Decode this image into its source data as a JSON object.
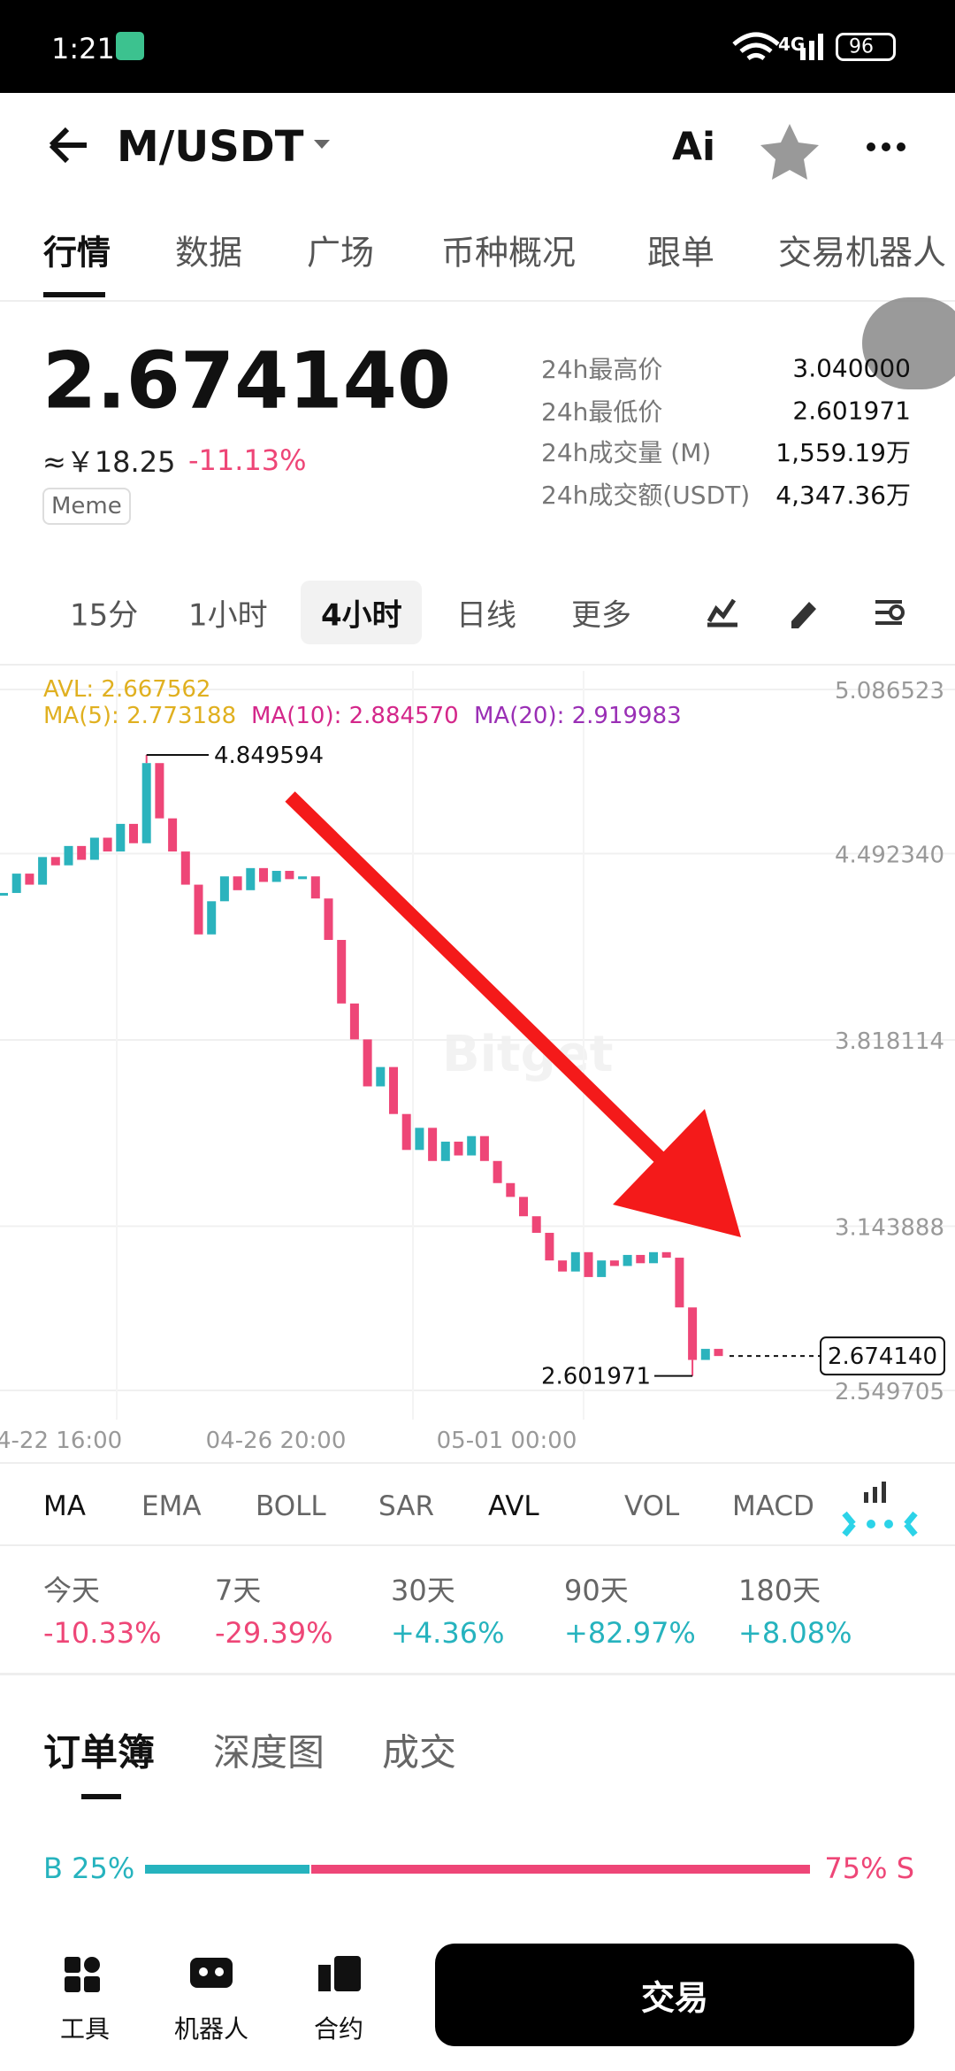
{
  "status_bar": {
    "time": "1:21",
    "network": "4G",
    "battery": "96"
  },
  "header": {
    "pair": "M/USDT",
    "ai": "Ai"
  },
  "tabs": [
    "行情",
    "数据",
    "广场",
    "币种概况",
    "跟单",
    "交易机器人"
  ],
  "price": {
    "last": "2.674140",
    "cny": "≈￥18.25",
    "change": "-11.13%",
    "tag": "Meme"
  },
  "stats": [
    {
      "label": "24h最高价",
      "value": "3.040000"
    },
    {
      "label": "24h最低价",
      "value": "2.601971"
    },
    {
      "label": "24h成交量 (M)",
      "value": "1,559.19万"
    },
    {
      "label": "24h成交额(USDT)",
      "value": "4,347.36万"
    }
  ],
  "intervals": [
    "15分",
    "1小时",
    "4小时",
    "日线",
    "更多"
  ],
  "chart": {
    "type": "candlestick",
    "indicators": {
      "avl": "AVL: 2.667562",
      "ma5": "MA(5): 2.773188",
      "ma10": "MA(10): 2.884570",
      "ma20": "MA(20): 2.919983"
    },
    "closes": [
      4.35,
      4.42,
      4.38,
      4.48,
      4.45,
      4.52,
      4.47,
      4.55,
      4.5,
      4.6,
      4.53,
      4.82,
      4.62,
      4.5,
      4.38,
      4.2,
      4.32,
      4.41,
      4.36,
      4.44,
      4.39,
      4.43,
      4.4,
      4.41,
      4.33,
      4.18,
      3.95,
      3.82,
      3.65,
      3.72,
      3.55,
      3.42,
      3.5,
      3.38,
      3.45,
      3.4,
      3.47,
      3.38,
      3.3,
      3.25,
      3.18,
      3.12,
      3.02,
      2.98,
      3.05,
      2.96,
      3.02,
      3.0,
      3.04,
      3.01,
      3.05,
      3.03,
      2.85,
      2.66,
      2.7,
      2.67414
    ],
    "ylim": [
      2.549705,
      5.086523
    ],
    "yticks": [
      5.086523,
      {
        "value": 4.49234,
        "label": "4.492340"
      },
      {
        "value": 3.818114,
        "label": "3.818114"
      },
      {
        "value": 3.143888,
        "label": "3.143888"
      },
      {
        "value": 2.549705,
        "label": "2.549705"
      }
    ],
    "x_labels": [
      "4-22 16:00",
      "04-26 20:00",
      "05-01 00:00"
    ],
    "high": 4.849594,
    "low": 2.601971,
    "current": {
      "value": 2.67414,
      "label": "2.674140"
    },
    "watermark": "Bitget",
    "up_color": "#2bb3bd",
    "down_color": "#ee4677"
  },
  "indicator_tabs": [
    "MA",
    "EMA",
    "BOLL",
    "SAR",
    "AVL",
    "VOL",
    "MACD"
  ],
  "performance": [
    {
      "period": "今天",
      "change": "-10.33%"
    },
    {
      "period": "7天",
      "change": "-29.39%"
    },
    {
      "period": "30天",
      "change": "+4.36%"
    },
    {
      "period": "90天",
      "change": "+82.97%"
    },
    {
      "period": "180天",
      "change": "+8.08%"
    }
  ],
  "orderbook": {
    "tabs": [
      "订单簿",
      "深度图",
      "成交"
    ],
    "buy": {
      "value": 25,
      "label": "B 25%"
    },
    "sell": {
      "value": 75,
      "label": "75% S"
    }
  },
  "bottom_nav": [
    "工具",
    "机器人",
    "合约"
  ],
  "trade_button": "交易"
}
